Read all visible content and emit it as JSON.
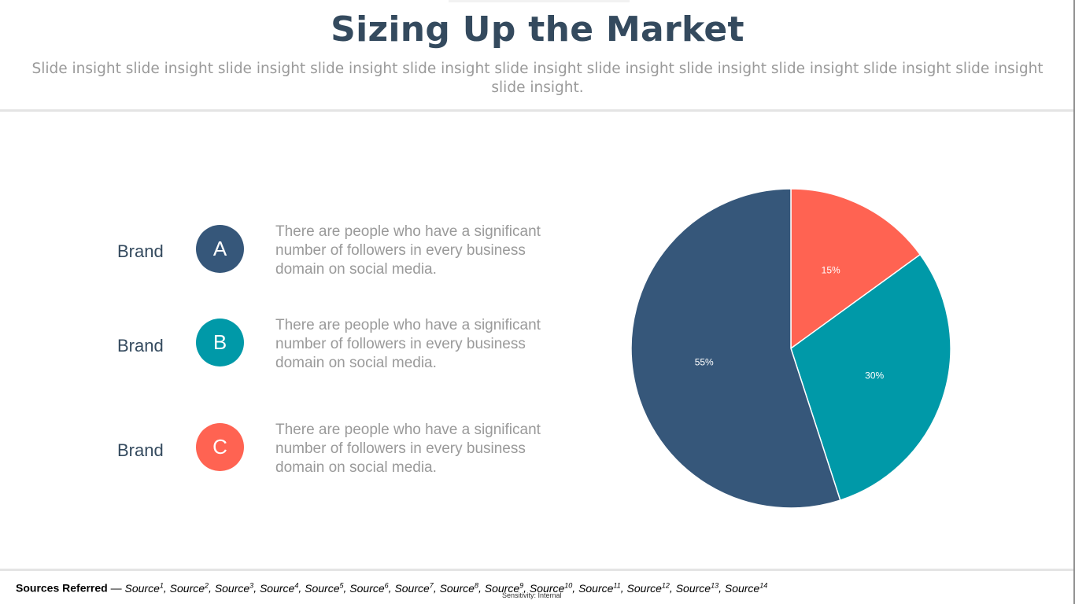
{
  "header": {
    "title": "Sizing Up the Market",
    "subtitle": "Slide insight slide insight slide insight slide insight slide insight slide insight slide insight slide insight slide insight slide insight slide insight slide insight."
  },
  "brands": [
    {
      "label": "Brand",
      "letter": "A",
      "color": "#36577a",
      "description": "There are people who have a significant number of followers in every business domain on social media."
    },
    {
      "label": "Brand",
      "letter": "B",
      "color": "#0099a8",
      "description": "There are people who have a significant number of followers in every business domain on social media."
    },
    {
      "label": "Brand",
      "letter": "C",
      "color": "#ff6352",
      "description": "There are people who have a significant number of followers in every business domain on social media."
    }
  ],
  "chart_data": {
    "type": "pie",
    "categories": [
      "C",
      "B",
      "A"
    ],
    "values": [
      15,
      30,
      55
    ],
    "labels": [
      "15%",
      "30%",
      "55%"
    ],
    "colors": [
      "#ff6352",
      "#0099a8",
      "#36577a"
    ],
    "start": "top, clockwise"
  },
  "footer": {
    "sources_lead": "Sources Referred",
    "sources_dash": " — ",
    "sources": [
      {
        "name": "Source",
        "n": "1"
      },
      {
        "name": "Source",
        "n": "2"
      },
      {
        "name": "Source",
        "n": "3"
      },
      {
        "name": "Source",
        "n": "4"
      },
      {
        "name": "Source",
        "n": "5"
      },
      {
        "name": "Source",
        "n": "6"
      },
      {
        "name": "Source",
        "n": "7"
      },
      {
        "name": "Source",
        "n": "8"
      },
      {
        "name": "Source",
        "n": "9"
      },
      {
        "name": "Source",
        "n": "10"
      },
      {
        "name": "Source",
        "n": "11"
      },
      {
        "name": "Source",
        "n": "12"
      },
      {
        "name": "Source",
        "n": "13"
      },
      {
        "name": "Source",
        "n": "14"
      }
    ],
    "sensitivity": "Sensitivity: Internal"
  }
}
